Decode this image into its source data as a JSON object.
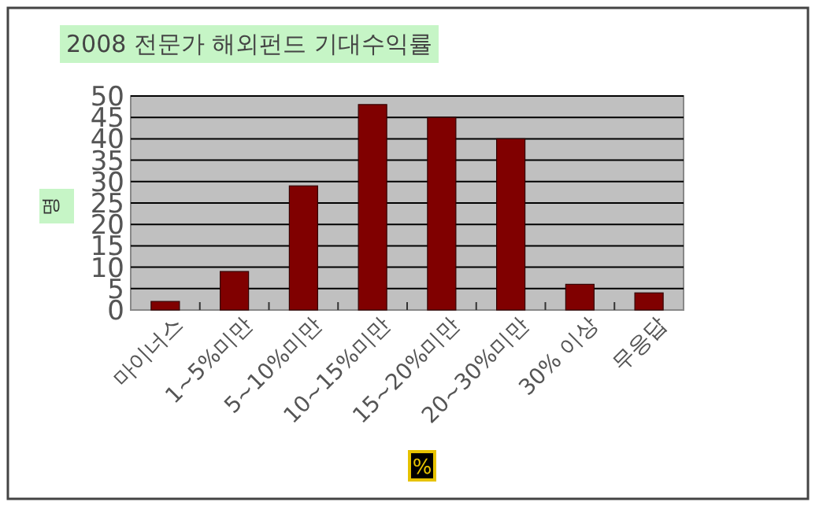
{
  "chart_data": {
    "type": "bar",
    "title": "2008 전문가 해외펀드 기대수익률",
    "xlabel": "%",
    "ylabel": "명",
    "categories": [
      "마이너스",
      "1~5%미만",
      "5~10%미만",
      "10~15%미만",
      "15~20%미만",
      "20~30%미만",
      "30% 이상",
      "무응답"
    ],
    "values": [
      2,
      9,
      29,
      48,
      45,
      40,
      6,
      4
    ],
    "color": "#800000",
    "ylim": [
      0,
      50
    ],
    "yticks": [
      0,
      5,
      10,
      15,
      20,
      25,
      30,
      35,
      40,
      45,
      50
    ],
    "grid": "y"
  }
}
